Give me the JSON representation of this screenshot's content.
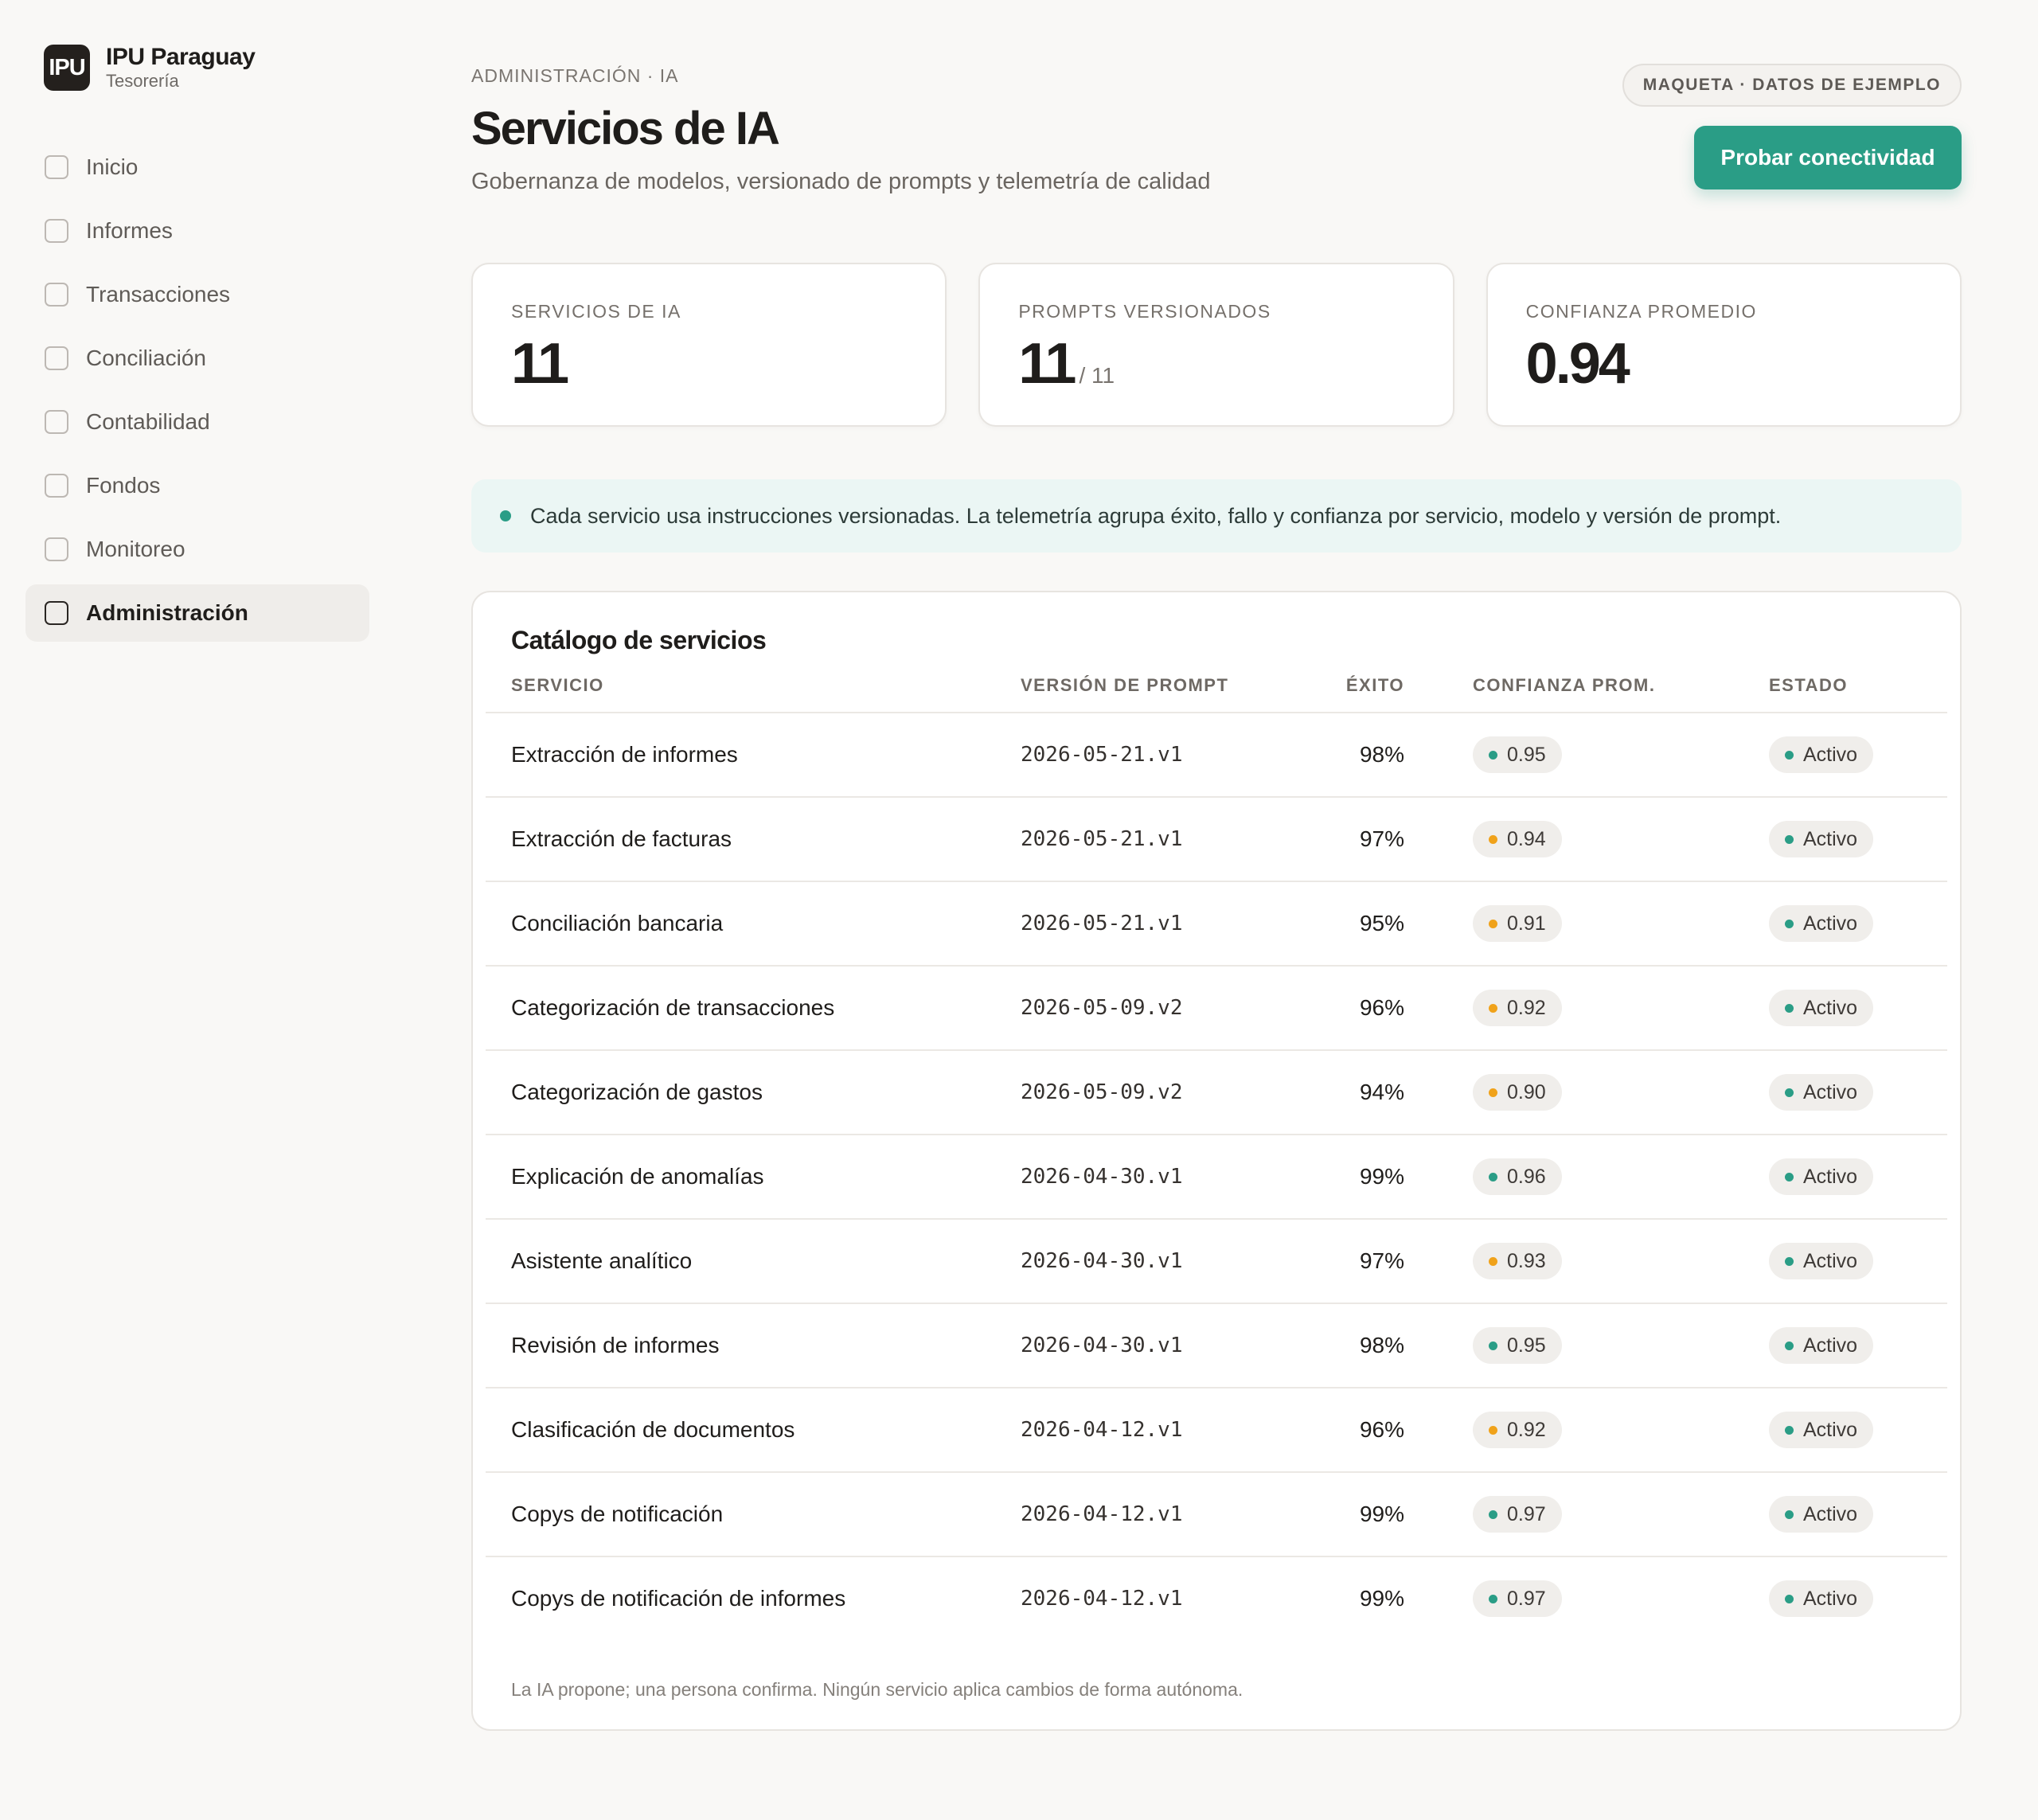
{
  "brand": {
    "logo": "IPU",
    "name": "IPU Paraguay",
    "subtitle": "Tesorería"
  },
  "sidebar": {
    "items": [
      {
        "label": "Inicio",
        "icon": "square-icon",
        "active": false
      },
      {
        "label": "Informes",
        "icon": "square-icon",
        "active": false
      },
      {
        "label": "Transacciones",
        "icon": "square-icon",
        "active": false
      },
      {
        "label": "Conciliación",
        "icon": "square-icon",
        "active": false
      },
      {
        "label": "Contabilidad",
        "icon": "square-icon",
        "active": false
      },
      {
        "label": "Fondos",
        "icon": "square-icon",
        "active": false
      },
      {
        "label": "Monitoreo",
        "icon": "square-icon",
        "active": false
      },
      {
        "label": "Administración",
        "icon": "square-icon",
        "active": true
      }
    ]
  },
  "header": {
    "breadcrumb": "ADMINISTRACIÓN · IA",
    "title": "Servicios de IA",
    "subtitle": "Gobernanza de modelos, versionado de prompts y telemetría de calidad",
    "demo_badge": "MAQUETA · DATOS DE EJEMPLO",
    "test_button": "Probar conectividad"
  },
  "stats": [
    {
      "label": "SERVICIOS DE IA",
      "value": "11",
      "suffix": ""
    },
    {
      "label": "PROMPTS VERSIONADOS",
      "value": "11",
      "suffix": "/ 11"
    },
    {
      "label": "CONFIANZA PROMEDIO",
      "value": "0.94",
      "suffix": ""
    }
  ],
  "info": "Cada servicio usa instrucciones versionadas. La telemetría agrupa éxito, fallo y confianza por servicio, modelo y versión de prompt.",
  "catalog": {
    "title": "Catálogo de servicios",
    "columns": {
      "service": "SERVICIO",
      "version": "VERSIÓN DE PROMPT",
      "success": "ÉXITO",
      "confidence": "CONFIANZA PROM.",
      "status": "ESTADO"
    },
    "rows": [
      {
        "service": "Extracción de informes",
        "version": "2026-05-21.v1",
        "success": "98%",
        "confidence": "0.95",
        "conf_level": "high",
        "status": "Activo"
      },
      {
        "service": "Extracción de facturas",
        "version": "2026-05-21.v1",
        "success": "97%",
        "confidence": "0.94",
        "conf_level": "medium",
        "status": "Activo"
      },
      {
        "service": "Conciliación bancaria",
        "version": "2026-05-21.v1",
        "success": "95%",
        "confidence": "0.91",
        "conf_level": "medium",
        "status": "Activo"
      },
      {
        "service": "Categorización de transacciones",
        "version": "2026-05-09.v2",
        "success": "96%",
        "confidence": "0.92",
        "conf_level": "medium",
        "status": "Activo"
      },
      {
        "service": "Categorización de gastos",
        "version": "2026-05-09.v2",
        "success": "94%",
        "confidence": "0.90",
        "conf_level": "medium",
        "status": "Activo"
      },
      {
        "service": "Explicación de anomalías",
        "version": "2026-04-30.v1",
        "success": "99%",
        "confidence": "0.96",
        "conf_level": "high",
        "status": "Activo"
      },
      {
        "service": "Asistente analítico",
        "version": "2026-04-30.v1",
        "success": "97%",
        "confidence": "0.93",
        "conf_level": "medium",
        "status": "Activo"
      },
      {
        "service": "Revisión de informes",
        "version": "2026-04-30.v1",
        "success": "98%",
        "confidence": "0.95",
        "conf_level": "high",
        "status": "Activo"
      },
      {
        "service": "Clasificación de documentos",
        "version": "2026-04-12.v1",
        "success": "96%",
        "confidence": "0.92",
        "conf_level": "medium",
        "status": "Activo"
      },
      {
        "service": "Copys de notificación",
        "version": "2026-04-12.v1",
        "success": "99%",
        "confidence": "0.97",
        "conf_level": "high",
        "status": "Activo"
      },
      {
        "service": "Copys de notificación de informes",
        "version": "2026-04-12.v1",
        "success": "99%",
        "confidence": "0.97",
        "conf_level": "high",
        "status": "Activo"
      }
    ],
    "footnote": "La IA propone; una persona confirma. Ningún servicio aplica cambios de forma autónoma."
  },
  "colors": {
    "accent": "#2a9d86",
    "confidence_high": "#2a9d86",
    "confidence_medium": "#f0a21a",
    "status_active": "#2a9d86"
  }
}
